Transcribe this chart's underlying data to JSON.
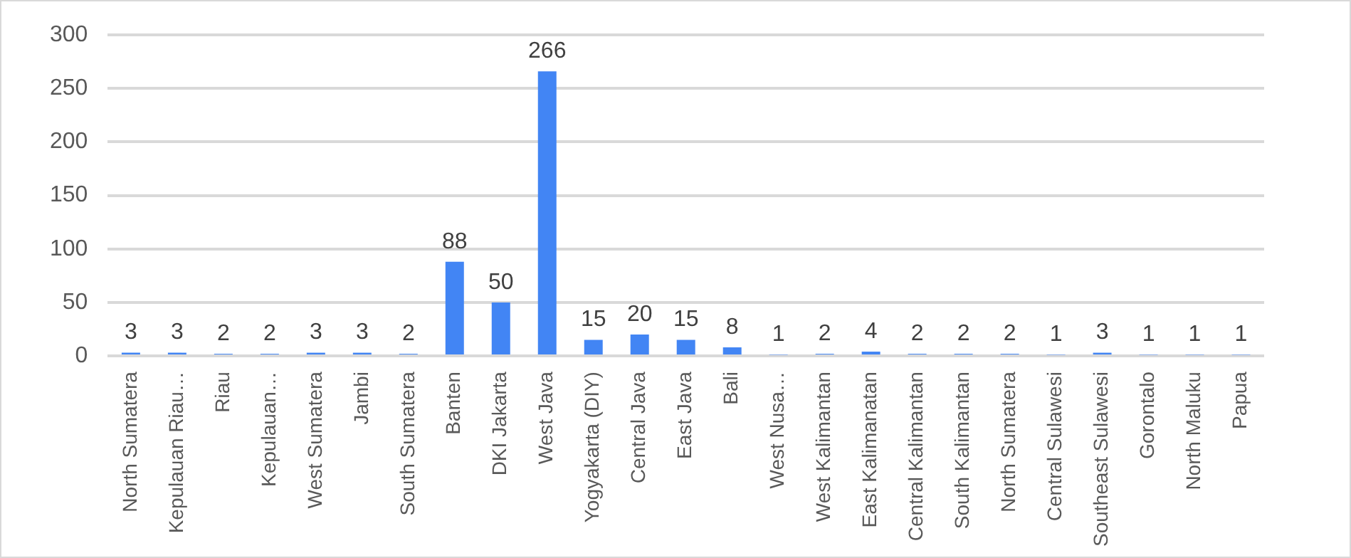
{
  "chart_data": {
    "type": "bar",
    "categories": [
      "North Sumatera",
      "Kepulauan Riau…",
      "Riau",
      "Kepulauan…",
      "West Sumatera",
      "Jambi",
      "South Sumatera",
      "Banten",
      "DKI Jakarta",
      "West Java",
      "Yogyakarta (DIY)",
      "Central Java",
      "East Java",
      "Bali",
      "West Nusa…",
      "West Kalimantan",
      "East Kalimanatan",
      "Central Kalimantan",
      "South Kalimantan",
      "North Sumatera",
      "Central Sulawesi",
      "Southeast Sulawesi",
      "Gorontalo",
      "North Maluku",
      "Papua"
    ],
    "values": [
      3,
      3,
      2,
      2,
      3,
      3,
      2,
      88,
      50,
      266,
      15,
      20,
      15,
      8,
      1,
      2,
      4,
      2,
      2,
      2,
      1,
      3,
      1,
      1,
      1
    ],
    "color": "#4285f4",
    "ylim": [
      0,
      300
    ],
    "yticks": [
      0,
      50,
      100,
      150,
      200,
      250,
      300
    ],
    "grid": "y",
    "data_labels": true,
    "legend": false
  }
}
